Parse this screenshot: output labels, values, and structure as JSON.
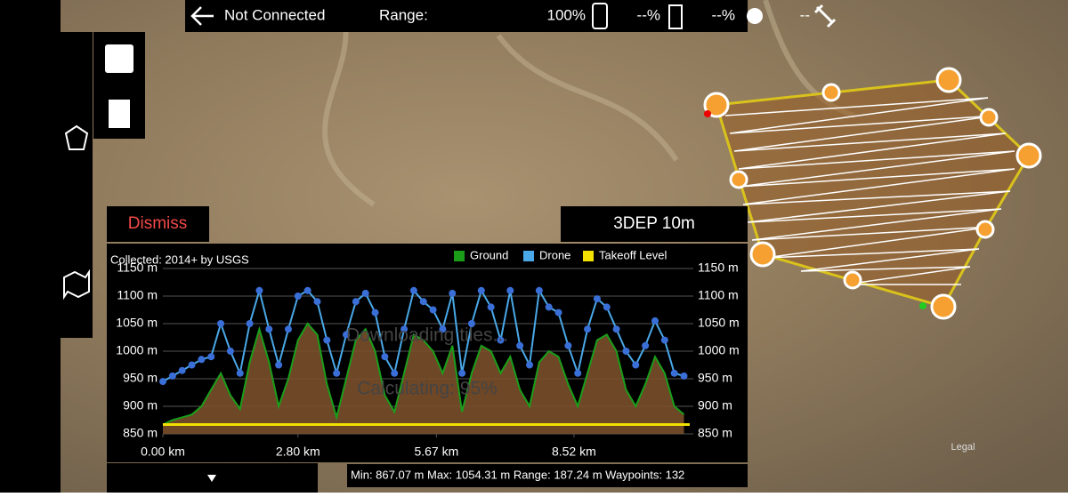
{
  "status_bar": {
    "connection": "Not Connected",
    "range_label": "Range:",
    "phone_battery": "100%",
    "drone_battery": "--%",
    "remote_battery": "--%",
    "satellites": "--"
  },
  "map": {
    "provider": "3DEP 10m",
    "legal": "Legal"
  },
  "dismiss": "Dismiss",
  "overlay": {
    "downloading": "Downloading tiles...",
    "calculating": "Calculating: 95%"
  },
  "stats": "Min: 867.07 m Max: 1054.31 m Range: 187.24 m Waypoints: 132",
  "chart_data": {
    "type": "line",
    "subtitle": "Collected: 2014+ by USGS",
    "x": [
      0,
      0.2,
      0.4,
      0.6,
      0.8,
      1.0,
      1.2,
      1.4,
      1.6,
      1.8,
      2.0,
      2.2,
      2.4,
      2.6,
      2.8,
      3.0,
      3.2,
      3.4,
      3.6,
      3.8,
      4.0,
      4.2,
      4.4,
      4.6,
      4.8,
      5.0,
      5.2,
      5.4,
      5.6,
      5.8,
      6.0,
      6.2,
      6.4,
      6.6,
      6.8,
      7.0,
      7.2,
      7.4,
      7.6,
      7.8,
      8.0,
      8.2,
      8.4,
      8.6,
      8.8,
      9.0,
      9.2,
      9.4,
      9.6,
      9.8,
      10.0,
      10.2,
      10.4,
      10.6,
      10.8
    ],
    "series": [
      {
        "name": "Ground",
        "color": "#1a9e1a",
        "fill": "#7a4f2a",
        "values": [
          867,
          875,
          880,
          885,
          900,
          930,
          960,
          920,
          895,
          980,
          1040,
          980,
          900,
          950,
          1020,
          1050,
          1030,
          940,
          880,
          950,
          1020,
          1040,
          1000,
          920,
          890,
          960,
          1030,
          1020,
          1000,
          960,
          1010,
          890,
          960,
          1010,
          1000,
          960,
          990,
          930,
          900,
          980,
          1000,
          990,
          940,
          900,
          960,
          1020,
          1030,
          1000,
          930,
          900,
          940,
          990,
          960,
          900,
          885
        ]
      },
      {
        "name": "Drone",
        "color": "#4aa8e8",
        "marker": "#3a6fd8",
        "values": [
          945,
          955,
          965,
          975,
          985,
          990,
          1050,
          1000,
          960,
          1050,
          1110,
          1040,
          975,
          1040,
          1100,
          1110,
          1090,
          1020,
          960,
          1030,
          1090,
          1105,
          1070,
          990,
          960,
          1040,
          1110,
          1090,
          1075,
          1040,
          1105,
          960,
          1050,
          1110,
          1080,
          1020,
          1110,
          1010,
          975,
          1110,
          1080,
          1070,
          1010,
          960,
          1040,
          1095,
          1080,
          1040,
          1000,
          975,
          1010,
          1055,
          1020,
          960,
          955
        ]
      },
      {
        "name": "Takeoff Level",
        "color": "#f2e000",
        "x": [
          0,
          10.92
        ],
        "values": [
          867,
          867
        ]
      }
    ],
    "xlim": [
      0,
      10.92
    ],
    "xticks": [
      {
        "value": 0,
        "label": "0.00 km"
      },
      {
        "value": 2.8,
        "label": "2.80 km"
      },
      {
        "value": 5.67,
        "label": "5.67 km"
      },
      {
        "value": 8.52,
        "label": "8.52 km"
      }
    ],
    "ylim": [
      850,
      1150
    ],
    "yticks": [
      {
        "value": 850,
        "label": "850 m"
      },
      {
        "value": 900,
        "label": "900 m"
      },
      {
        "value": 950,
        "label": "950 m"
      },
      {
        "value": 1000,
        "label": "1000 m"
      },
      {
        "value": 1050,
        "label": "1050 m"
      },
      {
        "value": 1100,
        "label": "1100 m"
      },
      {
        "value": 1150,
        "label": "1150 m"
      }
    ],
    "y2lim": [
      850,
      1150
    ],
    "y2ticks": [
      {
        "value": 850,
        "label": "850 m"
      },
      {
        "value": 900,
        "label": "900 m"
      },
      {
        "value": 950,
        "label": "950 m"
      },
      {
        "value": 1000,
        "label": "1000 m"
      },
      {
        "value": 1050,
        "label": "1050 m"
      },
      {
        "value": 1100,
        "label": "1100 m"
      },
      {
        "value": 1150,
        "label": "1150 m"
      }
    ],
    "grid": true,
    "legend": "top-right"
  }
}
